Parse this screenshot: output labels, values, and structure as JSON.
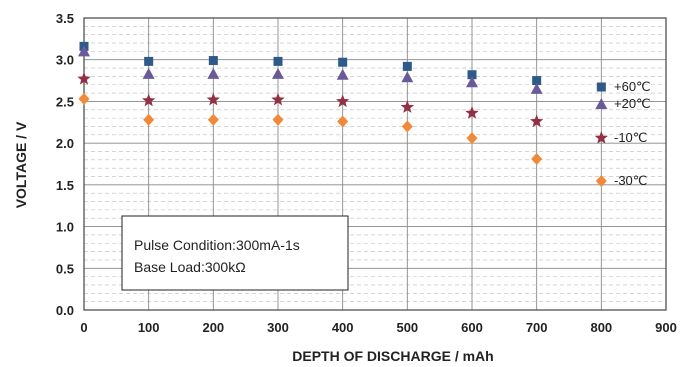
{
  "chart_data": {
    "type": "scatter",
    "title": "",
    "xlabel": "DEPTH OF DISCHARGE / mAh",
    "ylabel": "VOLTAGE / V",
    "xlim": [
      0,
      900
    ],
    "ylim": [
      0.0,
      3.5
    ],
    "x_ticks": [
      "0",
      "100",
      "200",
      "300",
      "400",
      "500",
      "600",
      "700",
      "800",
      "900"
    ],
    "y_ticks": [
      "0.0",
      "0.5",
      "1.0",
      "1.5",
      "2.0",
      "2.5",
      "3.0",
      "3.5"
    ],
    "grid": true,
    "legend_position": "right",
    "series": [
      {
        "name": "+60℃",
        "marker": "square",
        "color": "#2e5a88",
        "x": [
          0,
          100,
          200,
          300,
          400,
          500,
          600,
          700
        ],
        "y": [
          3.16,
          2.98,
          2.99,
          2.98,
          2.97,
          2.92,
          2.82,
          2.75
        ]
      },
      {
        "name": "+20℃",
        "marker": "triangle",
        "color": "#6a5a99",
        "x": [
          0,
          100,
          200,
          300,
          400,
          500,
          600,
          700
        ],
        "y": [
          3.1,
          2.83,
          2.83,
          2.83,
          2.82,
          2.79,
          2.73,
          2.65
        ]
      },
      {
        "name": "-10℃",
        "marker": "star",
        "color": "#943043",
        "x": [
          0,
          100,
          200,
          300,
          400,
          500,
          600,
          700
        ],
        "y": [
          2.77,
          2.51,
          2.52,
          2.52,
          2.5,
          2.43,
          2.36,
          2.26
        ]
      },
      {
        "name": "-30℃",
        "marker": "diamond",
        "color": "#f08a3a",
        "x": [
          0,
          100,
          200,
          300,
          400,
          500,
          600,
          700
        ],
        "y": [
          2.53,
          2.28,
          2.28,
          2.28,
          2.26,
          2.2,
          2.06,
          1.81
        ]
      }
    ],
    "annotation": {
      "lines": [
        "Pulse Condition:300mA-1s",
        "Base Load:300kΩ"
      ]
    }
  }
}
